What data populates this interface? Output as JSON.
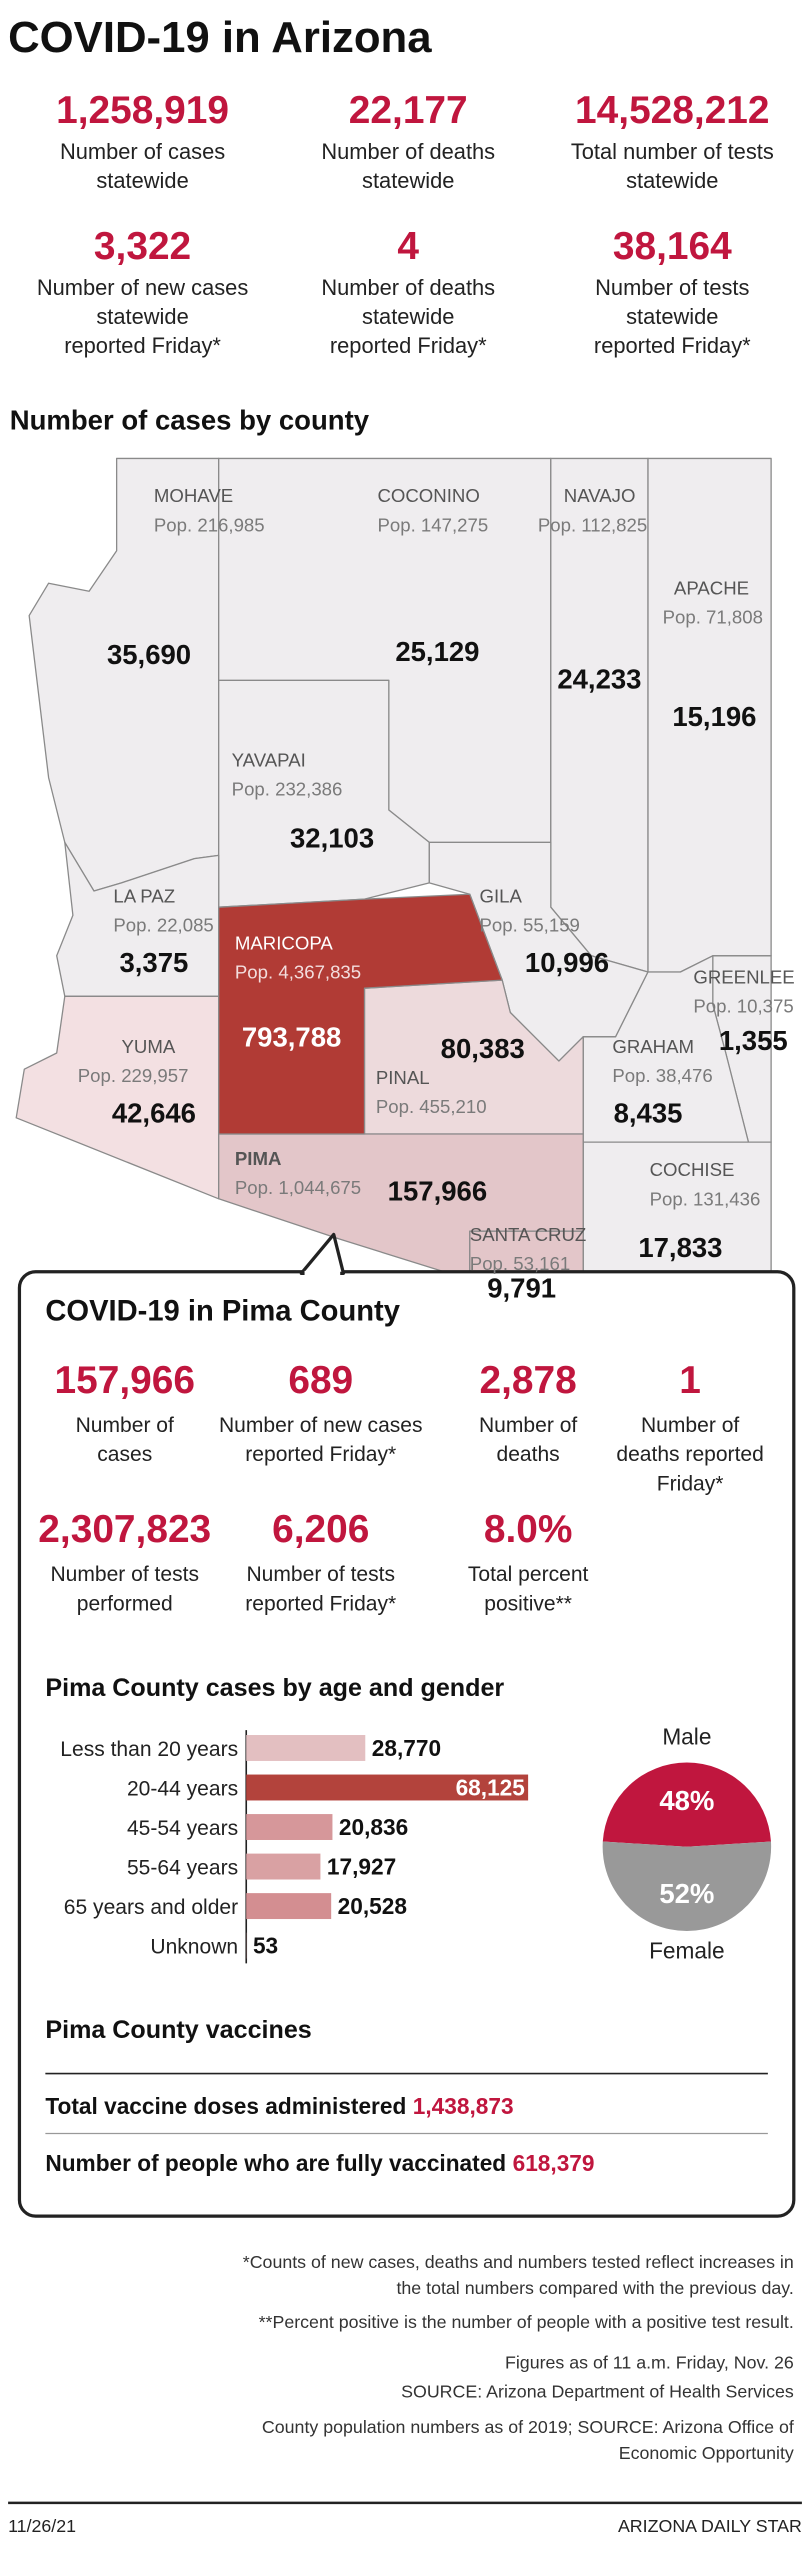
{
  "title": "COVID-19 in Arizona",
  "statewide": [
    {
      "value": "1,258,919",
      "label": [
        "Number of cases",
        "statewide"
      ]
    },
    {
      "value": "22,177",
      "label": [
        "Number of deaths",
        "statewide"
      ]
    },
    {
      "value": "14,528,212",
      "label": [
        "Total number of tests",
        "statewide"
      ]
    },
    {
      "value": "3,322",
      "label": [
        "Number of new cases",
        "statewide",
        "reported Friday*"
      ]
    },
    {
      "value": "4",
      "label": [
        "Number of deaths",
        "statewide",
        "reported Friday*"
      ]
    },
    {
      "value": "38,164",
      "label": [
        "Number of tests",
        "statewide",
        "reported Friday*"
      ]
    }
  ],
  "map": {
    "title": "Number of cases by county",
    "counties": [
      {
        "name": "MOHAVE",
        "pop": "Pop. 216,985",
        "cases": "35,690"
      },
      {
        "name": "COCONINO",
        "pop": "Pop. 147,275",
        "cases": "25,129"
      },
      {
        "name": "NAVAJO",
        "pop": "Pop. 112,825",
        "cases": "24,233"
      },
      {
        "name": "APACHE",
        "pop": "Pop. 71,808",
        "cases": "15,196"
      },
      {
        "name": "YAVAPAI",
        "pop": "Pop. 232,386",
        "cases": "32,103"
      },
      {
        "name": "LA PAZ",
        "pop": "Pop. 22,085",
        "cases": "3,375"
      },
      {
        "name": "MARICOPA",
        "pop": "Pop. 4,367,835",
        "cases": "793,788"
      },
      {
        "name": "GILA",
        "pop": "Pop. 55,159",
        "cases": "10,996"
      },
      {
        "name": "GREENLEE",
        "pop": "Pop. 10,375",
        "cases": "1,355"
      },
      {
        "name": "YUMA",
        "pop": "Pop. 229,957",
        "cases": "42,646"
      },
      {
        "name": "PINAL",
        "pop": "Pop. 455,210",
        "cases": "80,383"
      },
      {
        "name": "GRAHAM",
        "pop": "Pop. 38,476",
        "cases": "8,435"
      },
      {
        "name": "PIMA",
        "pop": "Pop. 1,044,675",
        "cases": "157,966"
      },
      {
        "name": "COCHISE",
        "pop": "Pop. 131,436",
        "cases": "17,833"
      },
      {
        "name": "SANTA CRUZ",
        "pop": "Pop. 53,161",
        "cases": "9,791"
      }
    ]
  },
  "pima": {
    "title": "COVID-19 in Pima County",
    "stats": [
      {
        "value": "157,966",
        "label": [
          "Number of",
          "cases"
        ]
      },
      {
        "value": "689",
        "label": [
          "Number of new cases",
          "reported Friday*"
        ]
      },
      {
        "value": "2,878",
        "label": [
          "Number of",
          "deaths"
        ]
      },
      {
        "value": "1",
        "label": [
          "Number of",
          "deaths reported",
          "Friday*"
        ]
      },
      {
        "value": "2,307,823",
        "label": [
          "Number of tests",
          "performed"
        ]
      },
      {
        "value": "6,206",
        "label": [
          "Number of tests",
          "reported Friday*"
        ]
      },
      {
        "value": "8.0%",
        "label": [
          "Total percent",
          "positive**"
        ]
      }
    ],
    "age_chart": {
      "type": "bar",
      "title": "Pima County cases by age and gender",
      "categories": [
        "Less than 20 years",
        "20-44 years",
        "45-54 years",
        "55-64 years",
        "65 years and older",
        "Unknown"
      ],
      "values": [
        28770,
        68125,
        20836,
        17927,
        20528,
        53
      ],
      "value_labels": [
        "28,770",
        "68,125",
        "20,836",
        "17,927",
        "20,528",
        "53"
      ],
      "colors": [
        "#e3bfc1",
        "#b3433c",
        "#d6979a",
        "#d9a1a3",
        "#d38e91",
        "#d38e91"
      ]
    },
    "gender_chart": {
      "type": "pie",
      "categories": [
        "Male",
        "Female"
      ],
      "values": [
        48,
        52
      ],
      "value_labels": [
        "48%",
        "52%"
      ],
      "colors": [
        "#c0163e",
        "#999999"
      ]
    },
    "vaccines": {
      "title": "Pima County vaccines",
      "rows": [
        {
          "label": "Total vaccine doses administered",
          "value": "1,438,873"
        },
        {
          "label": "Number of people who are fully vaccinated",
          "value": "618,379"
        }
      ]
    }
  },
  "footnotes": [
    "*Counts of new cases, deaths and numbers tested reflect increases in",
    "the total numbers compared with the previous day.",
    "**Percent positive is the number of people with a positive test result.",
    "Figures as of 11 a.m. Friday, Nov. 26",
    "SOURCE: Arizona Department of Health Services",
    "County population numbers as of 2019; SOURCE: Arizona Office of",
    "Economic Opportunity"
  ],
  "footer": {
    "date": "11/26/21",
    "publisher": "ARIZONA DAILY STAR"
  }
}
